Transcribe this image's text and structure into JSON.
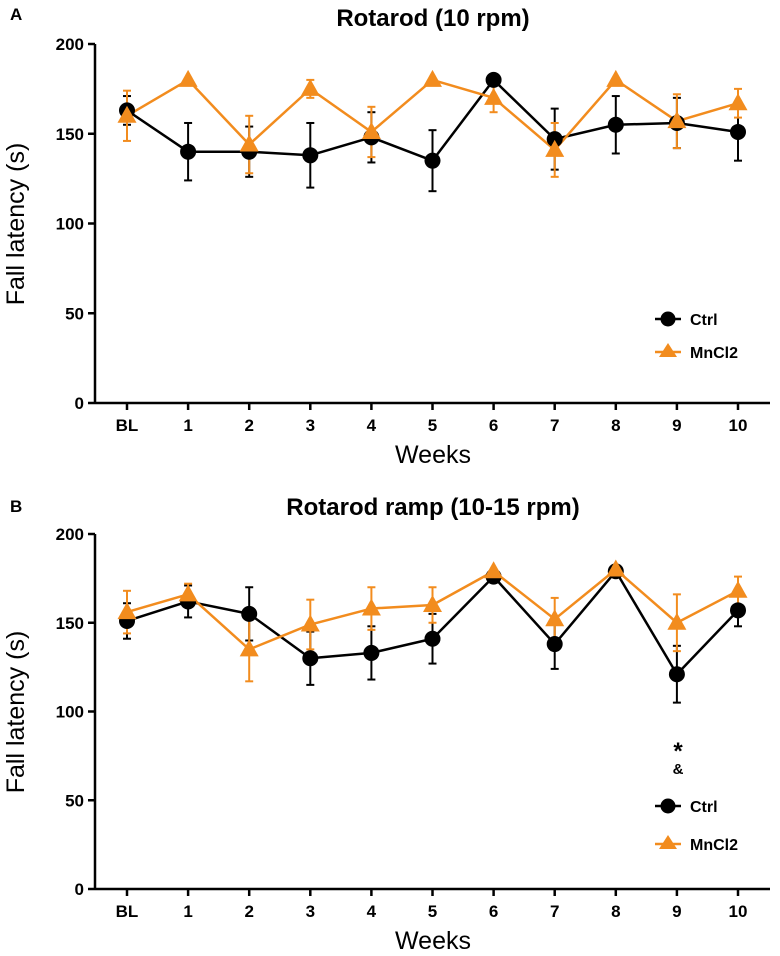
{
  "colors": {
    "ctrl": "#000000",
    "mncl2": "#F28C1E",
    "axis": "#000000"
  },
  "chart_data": [
    {
      "type": "line",
      "panel_label": "A",
      "title": "Rotarod (10 rpm)",
      "xlabel": "Weeks",
      "ylabel": "Fall latency (s)",
      "categories": [
        "BL",
        "1",
        "2",
        "3",
        "4",
        "5",
        "6",
        "7",
        "8",
        "9",
        "10"
      ],
      "ylim": [
        0,
        200
      ],
      "yticks": [
        "0",
        "50",
        "100",
        "150",
        "200"
      ],
      "legend_position": "right",
      "series": [
        {
          "name": "Ctrl",
          "marker": "circle",
          "values": [
            163,
            140,
            140,
            138,
            148,
            135,
            180,
            147,
            155,
            156,
            151
          ],
          "errors": [
            8,
            16,
            14,
            18,
            14,
            17,
            0,
            17,
            16,
            14,
            16
          ]
        },
        {
          "name": "MnCl2",
          "marker": "triangle",
          "values": [
            160,
            180,
            144,
            175,
            151,
            180,
            170,
            141,
            180,
            157,
            167
          ],
          "errors": [
            14,
            0,
            16,
            5,
            14,
            0,
            8,
            15,
            0,
            15,
            8
          ]
        }
      ],
      "annotations": []
    },
    {
      "type": "line",
      "panel_label": "B",
      "title": "Rotarod ramp (10-15 rpm)",
      "xlabel": "Weeks",
      "ylabel": "Fall latency (s)",
      "categories": [
        "BL",
        "1",
        "2",
        "3",
        "4",
        "5",
        "6",
        "7",
        "8",
        "9",
        "10"
      ],
      "ylim": [
        0,
        200
      ],
      "yticks": [
        "0",
        "50",
        "100",
        "150",
        "200"
      ],
      "legend_position": "right",
      "series": [
        {
          "name": "Ctrl",
          "marker": "circle",
          "values": [
            151,
            162,
            155,
            130,
            133,
            141,
            176,
            138,
            179,
            121,
            157
          ],
          "errors": [
            10,
            9,
            15,
            15,
            15,
            14,
            0,
            14,
            0,
            16,
            9
          ]
        },
        {
          "name": "MnCl2",
          "marker": "triangle",
          "values": [
            156,
            166,
            135,
            149,
            158,
            160,
            179,
            152,
            180,
            150,
            168
          ],
          "errors": [
            12,
            6,
            18,
            14,
            12,
            10,
            0,
            12,
            0,
            16,
            8
          ]
        }
      ],
      "annotations": [
        {
          "category": "9",
          "symbols": [
            "*",
            "&"
          ]
        }
      ]
    }
  ]
}
